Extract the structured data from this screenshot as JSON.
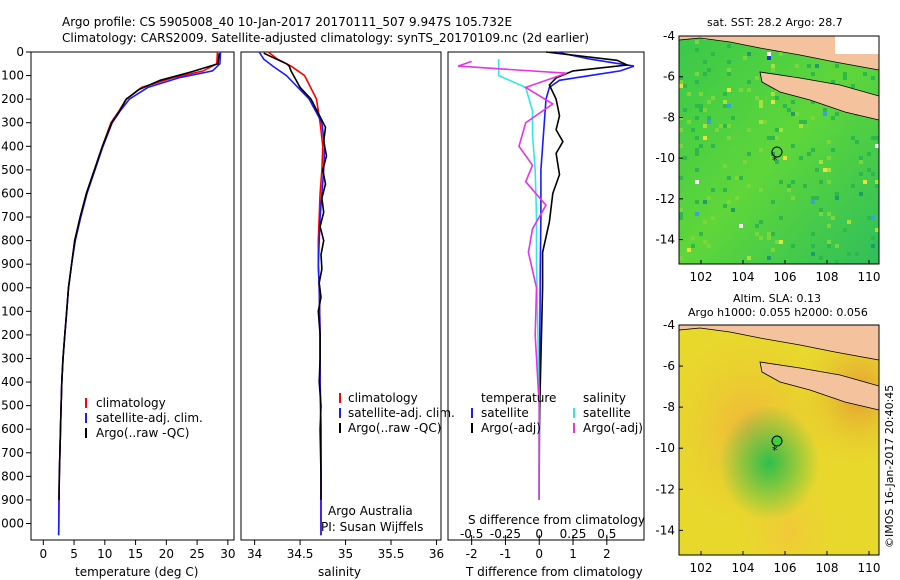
{
  "header": {
    "title_line1": "Argo profile: CS 5905008_40 10-Jan-2017 20170111_507 9.947S 105.732E",
    "title_line2": "Climatology: CARS2009. Satellite-adjusted climatology: synTS_20170109.nc (2d earlier)"
  },
  "colors": {
    "climatology": "#ff0000",
    "satellite": "#1a1aff",
    "argo": "#000000",
    "salinity_satellite": "#33e5e5",
    "salinity_argo": "#e533e5"
  },
  "chart_data": [
    {
      "type": "line",
      "xlabel": "temperature (deg C)",
      "xlim": [
        -2,
        31
      ],
      "ylim": [
        2070,
        0
      ],
      "xticks": [
        "0",
        "5",
        "10",
        "15",
        "20",
        "25",
        "30"
      ],
      "yticks": [
        "0",
        "100",
        "200",
        "300",
        "400",
        "500",
        "600",
        "700",
        "800",
        "900",
        "1000",
        "1100",
        "1200",
        "1300",
        "1400",
        "1500",
        "1600",
        "1700",
        "1800",
        "1900",
        "2000"
      ],
      "legend": [
        "climatology",
        "satellite-adj. clim.",
        "Argo(..raw -QC)"
      ],
      "series": [
        {
          "name": "climatology",
          "x": [
            28.3,
            28.2,
            26,
            21,
            16,
            13.5,
            12.3,
            11,
            9.6,
            8.3,
            7,
            6,
            5.1,
            4.6,
            4.1,
            3.8,
            3.5,
            3.2,
            3.0,
            2.9,
            2.8,
            2.7,
            2.6,
            2.55,
            2.5
          ],
          "y": [
            0,
            50,
            80,
            110,
            150,
            200,
            250,
            300,
            400,
            500,
            600,
            700,
            800,
            900,
            1000,
            1100,
            1200,
            1300,
            1400,
            1500,
            1600,
            1700,
            1800,
            1900,
            2050
          ]
        },
        {
          "name": "satellite-adj. clim.",
          "x": [
            28.8,
            28.7,
            27.5,
            22,
            17,
            14,
            12.5,
            11.2,
            9.7,
            8.4,
            7.1,
            6.1,
            5.2,
            4.6,
            4.1,
            3.8,
            3.5,
            3.2,
            3.0,
            2.9,
            2.8,
            2.7,
            2.6,
            2.55,
            2.5
          ],
          "y": [
            0,
            50,
            80,
            110,
            150,
            200,
            250,
            300,
            400,
            500,
            600,
            700,
            800,
            900,
            1000,
            1100,
            1200,
            1300,
            1400,
            1500,
            1600,
            1700,
            1800,
            1900,
            2050
          ]
        },
        {
          "name": "Argo(..raw -QC)",
          "x": [
            28.6,
            28.4,
            24,
            19,
            15.5,
            13.5,
            12.4,
            11.1,
            9.6,
            8.3,
            7.0,
            6.0,
            5.1,
            4.6,
            4.1,
            3.8,
            3.5,
            3.2,
            3.0,
            2.9,
            2.8,
            2.7,
            2.6,
            2.55
          ],
          "y": [
            5,
            50,
            85,
            120,
            160,
            200,
            250,
            300,
            400,
            500,
            600,
            700,
            800,
            900,
            1000,
            1100,
            1200,
            1300,
            1400,
            1500,
            1600,
            1700,
            1800,
            1900
          ]
        }
      ]
    },
    {
      "type": "line",
      "xlabel": "salinity",
      "xlim": [
        33.85,
        36.05
      ],
      "ylim": [
        2070,
        0
      ],
      "xticks": [
        "34",
        "34.5",
        "35",
        "35.5",
        "36"
      ],
      "legend": [
        "climatology",
        "satellite-adj. clim.",
        "Argo(..raw -QC)"
      ],
      "annotation": [
        "Argo Australia",
        "PI: Susan Wijffels"
      ],
      "series": [
        {
          "name": "climatology",
          "x": [
            34.15,
            34.25,
            34.4,
            34.55,
            34.68,
            34.72,
            34.75,
            34.74,
            34.72,
            34.71,
            34.7,
            34.7,
            34.71,
            34.72,
            34.72,
            34.73,
            34.73
          ],
          "y": [
            0,
            30,
            60,
            100,
            200,
            300,
            400,
            500,
            600,
            700,
            800,
            900,
            1000,
            1200,
            1400,
            1600,
            2050
          ]
        },
        {
          "name": "satellite-adj. clim.",
          "x": [
            34.05,
            34.1,
            34.2,
            34.35,
            34.6,
            34.74,
            34.77,
            34.76,
            34.74,
            34.72,
            34.71,
            34.7,
            34.71,
            34.72,
            34.72,
            34.73,
            34.73
          ],
          "y": [
            0,
            30,
            60,
            100,
            200,
            300,
            400,
            500,
            600,
            700,
            800,
            900,
            1000,
            1200,
            1400,
            1600,
            2050
          ]
        },
        {
          "name": "Argo(..raw -QC)",
          "x": [
            34.1,
            34.35,
            34.38,
            34.4,
            34.5,
            34.62,
            34.7,
            34.78,
            34.76,
            34.79,
            34.75,
            34.78,
            34.74,
            34.76,
            34.72,
            34.76,
            34.73,
            34.74,
            34.71,
            34.73,
            34.7,
            34.72,
            34.72,
            34.71,
            34.73,
            34.72,
            34.73,
            34.73
          ],
          "y": [
            5,
            50,
            60,
            80,
            150,
            200,
            260,
            320,
            380,
            440,
            500,
            560,
            620,
            680,
            740,
            800,
            860,
            920,
            980,
            1040,
            1100,
            1200,
            1300,
            1400,
            1500,
            1600,
            1800,
            1900
          ]
        }
      ]
    },
    {
      "type": "line",
      "xlabel": "T difference from climatology",
      "xlabel2": "S difference from climatology",
      "xlim": [
        -2.7,
        3.1
      ],
      "ylim": [
        2070,
        0
      ],
      "xticks": [
        "-2",
        "-1",
        "0",
        "1",
        "2"
      ],
      "xticks2": [
        "-0.5",
        "-0.25",
        "0",
        "0.25",
        "0.5"
      ],
      "legend_temperature": [
        "temperature",
        "satellite",
        "Argo(-adj)"
      ],
      "legend_salinity": [
        "salinity",
        "satellite",
        "Argo(-adj)"
      ],
      "series": [
        {
          "name": "temperature satellite",
          "x": [
            0.5,
            1.5,
            2.8,
            2.4,
            1.5,
            0.6,
            0.3,
            0.2,
            0.15,
            0.1,
            0.05,
            0.05,
            0.03,
            0.02,
            0.01,
            0,
            0
          ],
          "y": [
            0,
            30,
            60,
            80,
            100,
            120,
            150,
            200,
            300,
            400,
            500,
            700,
            900,
            1200,
            1500,
            1800,
            1900
          ]
        },
        {
          "name": "temperature Argo(-adj)",
          "x": [
            0.2,
            2.3,
            2.6,
            1.0,
            0.5,
            0.3,
            0.5,
            0.6,
            0.5,
            0.7,
            0.5,
            0.6,
            0.4,
            0.3,
            0.1,
            0.1,
            0.05,
            0,
            0
          ],
          "y": [
            0,
            35,
            55,
            80,
            110,
            140,
            200,
            270,
            330,
            380,
            430,
            520,
            600,
            720,
            850,
            1000,
            1300,
            1600,
            1900
          ]
        },
        {
          "name": "salinity satellite",
          "x": [
            -0.3,
            -0.3,
            -0.1,
            -0.05,
            -0.05,
            -0.03,
            -0.02,
            -0.02,
            -0.01,
            0,
            0
          ],
          "y": [
            30,
            100,
            150,
            250,
            350,
            500,
            700,
            900,
            1200,
            1500,
            1900
          ]
        },
        {
          "name": "salinity Argo(-adj)",
          "x": [
            -0.5,
            -0.6,
            0.2,
            -0.1,
            0.1,
            -0.1,
            -0.15,
            -0.05,
            -0.1,
            0.05,
            -0.05,
            -0.08,
            -0.02,
            -0.03,
            0,
            0
          ],
          "y": [
            40,
            60,
            90,
            150,
            220,
            300,
            400,
            480,
            550,
            650,
            750,
            850,
            1000,
            1200,
            1500,
            1900
          ]
        }
      ]
    }
  ],
  "maps": {
    "top": {
      "title": "sat. SST: 28.2 Argo: 28.7",
      "yticks": [
        "-4",
        "-6",
        "-8",
        "-10",
        "-12",
        "-14"
      ],
      "xticks": [
        "102",
        "104",
        "106",
        "108",
        "110"
      ]
    },
    "bottom": {
      "title_line1": "Altim. SLA: 0.13",
      "title_line2": "Argo h1000: 0.055 h2000: 0.056",
      "yticks": [
        "-4",
        "-6",
        "-8",
        "-10",
        "-12",
        "-14"
      ],
      "xticks": [
        "102",
        "104",
        "106",
        "108",
        "110"
      ]
    }
  },
  "footer": {
    "side_label": "©IMOS 16-Jan-2017 20:40:45"
  }
}
